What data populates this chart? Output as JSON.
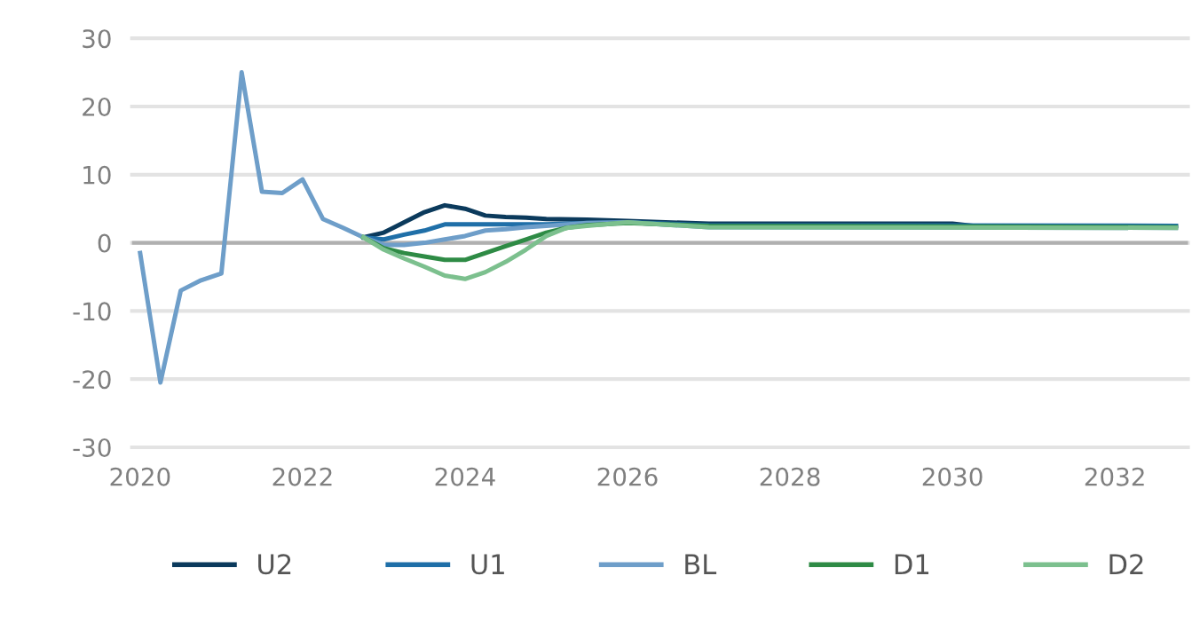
{
  "chart_data": {
    "type": "line",
    "xlim": [
      2019.9,
      2032.9
    ],
    "xticks": [
      2020,
      2022,
      2024,
      2026,
      2028,
      2030,
      2032
    ],
    "ylim": [
      -30,
      30
    ],
    "yticks": [
      -30,
      -20,
      -10,
      0,
      10,
      20,
      30
    ],
    "grid": "y",
    "legend": "bottom",
    "line_style": "solid",
    "marker": "none",
    "ref_lines": [
      {
        "axis": "y",
        "value": 0,
        "color": "#b0b0b0"
      }
    ],
    "series": [
      {
        "name": "U2",
        "color": "#0b3a5c",
        "x": [
          2022.75,
          2023.0,
          2023.25,
          2023.5,
          2023.75,
          2024.0,
          2024.25,
          2024.5,
          2024.75,
          2025.0,
          2025.5,
          2026.0,
          2027.0,
          2030.0,
          2030.25,
          2032.75
        ],
        "values": [
          0.8,
          1.5,
          3,
          4.5,
          5.5,
          5,
          4,
          3.8,
          3.7,
          3.5,
          3.4,
          3.2,
          2.8,
          2.8,
          2.5,
          2.5
        ]
      },
      {
        "name": "U1",
        "color": "#1f6fa8",
        "x": [
          2022.75,
          2023.0,
          2023.25,
          2023.5,
          2023.75,
          2024.0,
          2025.0,
          2025.5,
          2026.0,
          2027.0,
          2032.75
        ],
        "values": [
          0.8,
          0.5,
          1.2,
          1.8,
          2.7,
          2.7,
          2.7,
          2.9,
          3,
          2.6,
          2.5
        ]
      },
      {
        "name": "BL",
        "color": "#6e9ec9",
        "x": [
          2020.0,
          2020.25,
          2020.5,
          2020.75,
          2021.0,
          2021.25,
          2021.5,
          2021.75,
          2022.0,
          2022.25,
          2022.5,
          2022.75,
          2023.0,
          2023.25,
          2023.5,
          2023.75,
          2024.0,
          2024.25,
          2024.5,
          2024.75,
          2025.0,
          2025.5,
          2026.0,
          2027.0,
          2032.75
        ],
        "values": [
          -1.5,
          -20.5,
          -7,
          -5.5,
          -4.5,
          25,
          7.5,
          7.3,
          9.3,
          3.5,
          2.2,
          0.8,
          -0.3,
          -0.3,
          0,
          0.5,
          1,
          1.8,
          2,
          2.3,
          2.5,
          2.9,
          3,
          2.3,
          2.2
        ]
      },
      {
        "name": "D1",
        "color": "#2e8b45",
        "x": [
          2022.75,
          2023.0,
          2023.25,
          2023.5,
          2023.75,
          2024.0,
          2024.25,
          2024.5,
          2024.75,
          2025.0,
          2025.25,
          2025.5,
          2026.0,
          2027.0,
          2032.75
        ],
        "values": [
          0.8,
          -0.8,
          -1.5,
          -2,
          -2.5,
          -2.5,
          -1.5,
          -0.5,
          0.5,
          1.5,
          2.2,
          2.6,
          2.9,
          2.5,
          2.3
        ]
      },
      {
        "name": "D2",
        "color": "#7cc08e",
        "x": [
          2022.75,
          2023.0,
          2023.25,
          2023.5,
          2023.75,
          2024.0,
          2024.25,
          2024.5,
          2024.75,
          2025.0,
          2025.25,
          2025.5,
          2026.0,
          2027.0,
          2032.75
        ],
        "values": [
          0.8,
          -1,
          -2.3,
          -3.5,
          -4.8,
          -5.3,
          -4.3,
          -2.8,
          -1,
          1,
          2.2,
          2.5,
          3,
          2.3,
          2.2
        ]
      }
    ]
  }
}
